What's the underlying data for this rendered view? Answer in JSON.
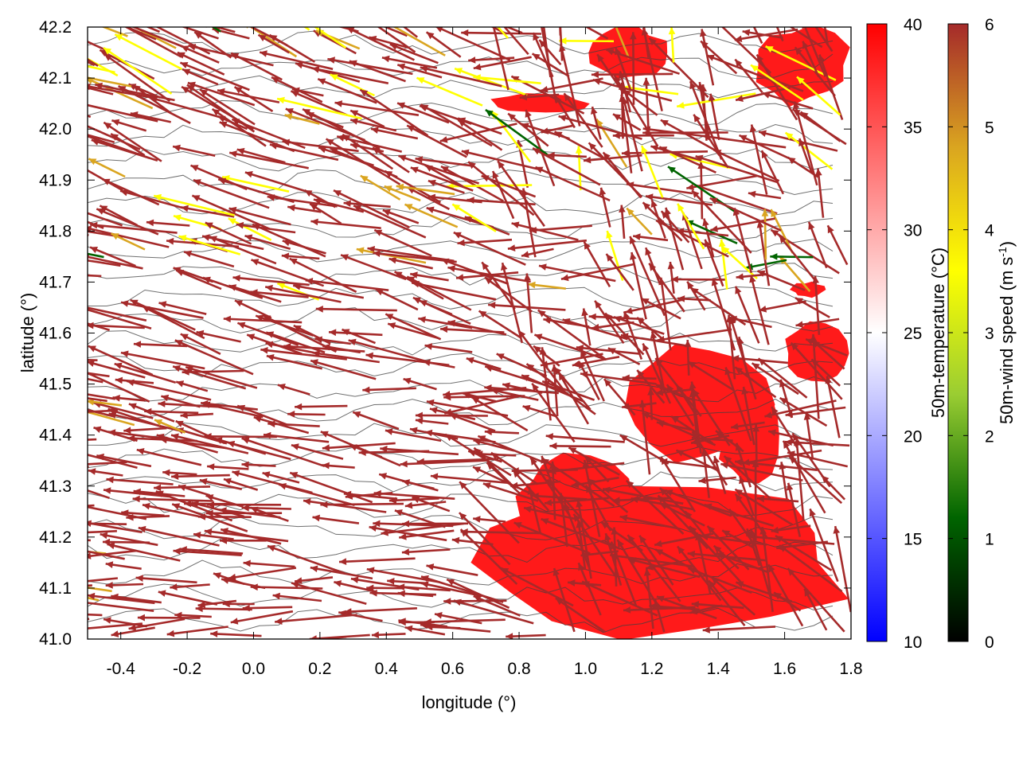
{
  "chart_data": {
    "type": "heatmap",
    "title": "",
    "xlabel": "longitude (°)",
    "ylabel": "latitude (°)",
    "xlim": [
      -0.5,
      1.8
    ],
    "ylim": [
      41.0,
      42.2
    ],
    "x_ticks": [
      "-0.4",
      "-0.2",
      "0.0",
      "0.2",
      "0.4",
      "0.6",
      "0.8",
      "1.0",
      "1.2",
      "1.4",
      "1.6",
      "1.8"
    ],
    "y_ticks": [
      "41.0",
      "41.1",
      "41.2",
      "41.3",
      "41.4",
      "41.5",
      "41.6",
      "41.7",
      "41.8",
      "41.9",
      "42.0",
      "42.1",
      "42.2"
    ],
    "grid": false,
    "layers": [
      "50m-temperature field (color map)",
      "terrain contours (dark grey)",
      "50m-wind vectors colored by speed"
    ],
    "temperature_colorbar": {
      "label": "50m-temperature (°C)",
      "range": [
        10,
        40
      ],
      "ticks": [
        "10",
        "15",
        "20",
        "25",
        "30",
        "35",
        "40"
      ],
      "colors": [
        "#0000ff",
        "#ffffff",
        "#ff0000"
      ]
    },
    "wind_colorbar": {
      "label_main": "50m-wind speed (m s",
      "label_sup": "-1",
      "label_end": ")",
      "range": [
        0,
        6
      ],
      "ticks": [
        "0",
        "1",
        "2",
        "3",
        "4",
        "5",
        "6"
      ],
      "colors": [
        "#000000",
        "#006400",
        "#9acd32",
        "#ffff00",
        "#daa520",
        "#a52a2a"
      ]
    },
    "hot_regions_temperature": 40,
    "hot_regions": [
      {
        "lon": [
          0.68,
          1.8
        ],
        "lat": [
          41.0,
          41.3
        ]
      },
      {
        "lon": [
          0.8,
          1.15
        ],
        "lat": [
          41.2,
          41.36
        ]
      },
      {
        "lon": [
          1.1,
          1.55
        ],
        "lat": [
          41.35,
          41.57
        ]
      },
      {
        "lon": [
          1.4,
          1.6
        ],
        "lat": [
          41.3,
          41.5
        ]
      },
      {
        "lon": [
          1.6,
          1.8
        ],
        "lat": [
          41.5,
          41.62
        ]
      },
      {
        "lon": [
          1.0,
          1.25
        ],
        "lat": [
          42.1,
          42.2
        ]
      },
      {
        "lon": [
          1.5,
          1.8
        ],
        "lat": [
          42.05,
          42.2
        ]
      },
      {
        "lon": [
          0.7,
          1.0
        ],
        "lat": [
          42.03,
          42.07
        ]
      },
      {
        "lon": [
          1.62,
          1.72
        ],
        "lat": [
          41.67,
          41.7
        ]
      }
    ]
  }
}
